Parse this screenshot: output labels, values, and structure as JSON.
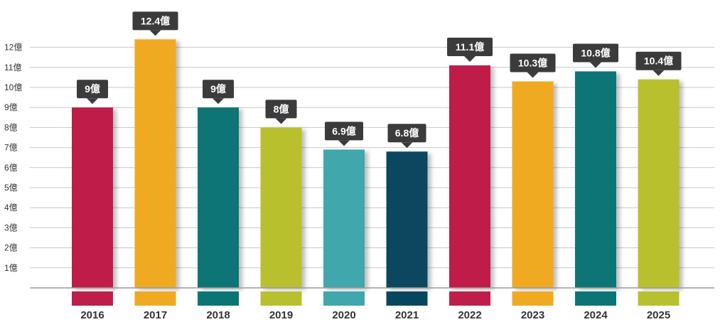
{
  "chart_data": {
    "type": "bar",
    "categories": [
      "2016",
      "2017",
      "2018",
      "2019",
      "2020",
      "2021",
      "2022",
      "2023",
      "2024",
      "2025"
    ],
    "values": [
      9,
      12.4,
      9,
      8,
      6.9,
      6.8,
      11.1,
      10.3,
      10.8,
      10.4
    ],
    "data_labels": [
      "9億",
      "12.4億",
      "9億",
      "8億",
      "6.9億",
      "6.8億",
      "11.1億",
      "10.3億",
      "10.8億",
      "10.4億"
    ],
    "y_ticks": [
      {
        "value": 1,
        "label": "1億"
      },
      {
        "value": 2,
        "label": "2億"
      },
      {
        "value": 3,
        "label": "3億"
      },
      {
        "value": 4,
        "label": "4億"
      },
      {
        "value": 5,
        "label": "5億"
      },
      {
        "value": 6,
        "label": "6億"
      },
      {
        "value": 7,
        "label": "7億"
      },
      {
        "value": 8,
        "label": "8億"
      },
      {
        "value": 9,
        "label": "9億"
      },
      {
        "value": 10,
        "label": "10億"
      },
      {
        "value": 11,
        "label": "11億"
      },
      {
        "value": 12,
        "label": "12億"
      }
    ],
    "ylim": [
      0,
      12
    ],
    "grid": true,
    "colors": [
      "#c01e4a",
      "#f0aa22",
      "#0b7575",
      "#b9c02f",
      "#40a7ad",
      "#07465f",
      "#c01e4a",
      "#f0aa22",
      "#0b7575",
      "#b9c02f"
    ],
    "label_box_color": "#3b3b3b",
    "title": "",
    "xlabel": "",
    "ylabel": ""
  }
}
